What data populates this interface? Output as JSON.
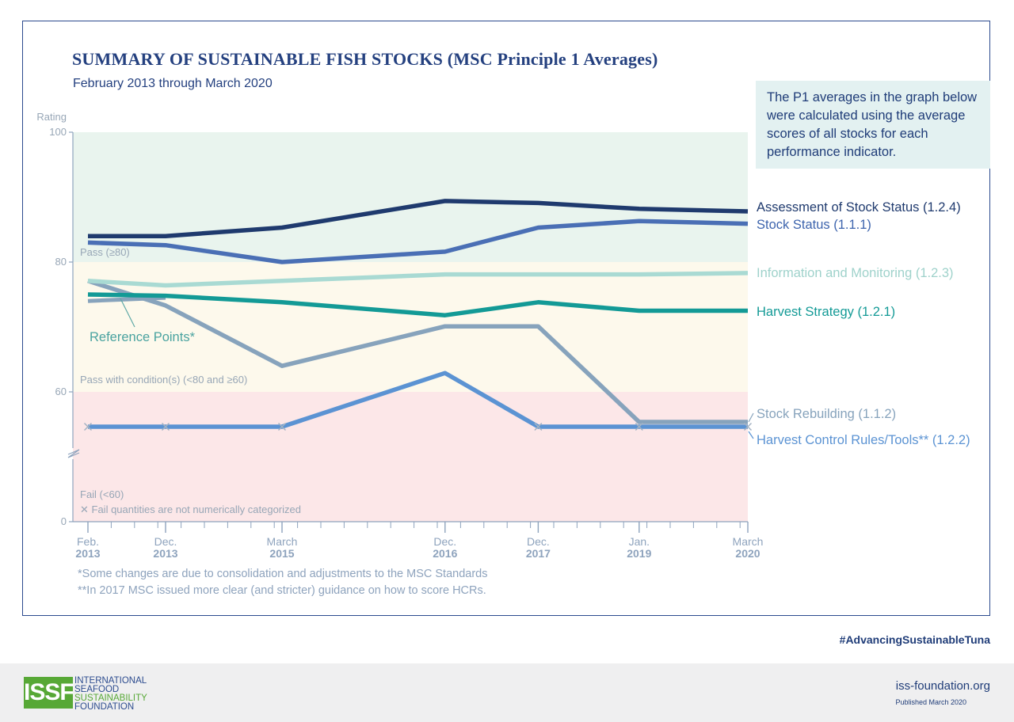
{
  "header": {
    "title": "SUMMARY OF SUSTAINABLE FISH STOCKS (MSC Principle 1 Averages)",
    "subtitle": "February 2013 through March 2020"
  },
  "note": "The P1 averages in the graph below were calculated using the average scores of all stocks for each performance indicator.",
  "footnotes": [
    "*Some changes are due to consolidation and adjustments to the MSC Standards",
    "**In 2017 MSC issued more clear (and stricter) guidance on how to score HCRs."
  ],
  "footer": {
    "hashtag": "#AdvancingSustainableTuna",
    "website": "iss-foundation.org",
    "published": "Published March 2020",
    "logo_mark": "ISSF",
    "logo_lines": [
      "INTERNATIONAL",
      "SEAFOOD",
      "SUSTAINABILITY",
      "FOUNDATION"
    ]
  },
  "colors": {
    "frame": "#2b4a8e",
    "pass_band": "#e9f4ee",
    "condition_band": "#fdf9ec",
    "fail_band": "#fce7e8",
    "axis": "#8ea3bd",
    "logo_blue": "#2d4c8f",
    "logo_green": "#57a836"
  },
  "chart_data": {
    "type": "line",
    "ylabel": "Rating",
    "y_ticks": [
      {
        "value": 100,
        "label": "100"
      },
      {
        "value": 80,
        "label": "80"
      },
      {
        "value": 60,
        "label": "60"
      },
      {
        "value": 0,
        "label": "0"
      }
    ],
    "y_axis_break": "between 0 and 60",
    "x": [
      {
        "date": "2013-02",
        "label": [
          "Feb.",
          "2013"
        ]
      },
      {
        "date": "2013-12",
        "label": [
          "Dec.",
          "2013"
        ]
      },
      {
        "date": "2015-03",
        "label": [
          "March",
          "2015"
        ]
      },
      {
        "date": "2016-12",
        "label": [
          "Dec.",
          "2016"
        ]
      },
      {
        "date": "2017-12",
        "label": [
          "Dec.",
          "2017"
        ]
      },
      {
        "date": "2019-01",
        "label": [
          "Jan.",
          "2019"
        ]
      },
      {
        "date": "2020-03",
        "label": [
          "March",
          "2020"
        ]
      }
    ],
    "bands": [
      {
        "label": "Pass (≥80)",
        "from": 80,
        "to": 100,
        "color": "#e9f4ee"
      },
      {
        "label": "Pass with condition(s) (<80 and ≥60)",
        "from": 60,
        "to": 80,
        "color": "#fdf9ec"
      },
      {
        "label": "Fail (<60)",
        "from": 0,
        "to": 60,
        "color": "#fce7e8"
      }
    ],
    "fail_note": "Fail quantities are not numerically categorized",
    "series": [
      {
        "name": "Assessment of Stock Status (1.2.4)",
        "color": "#1f3a6e",
        "points": [
          [
            "2013-02",
            84.0
          ],
          [
            "2013-12",
            84.0
          ],
          [
            "2015-03",
            85.3
          ],
          [
            "2016-12",
            89.4
          ],
          [
            "2017-12",
            89.1
          ],
          [
            "2019-01",
            88.2
          ],
          [
            "2020-03",
            87.8
          ]
        ]
      },
      {
        "name": "Stock Status (1.1.1)",
        "color": "#4a6fb5",
        "points": [
          [
            "2013-02",
            83.0
          ],
          [
            "2013-12",
            82.6
          ],
          [
            "2015-03",
            80.0
          ],
          [
            "2016-12",
            81.6
          ],
          [
            "2017-12",
            85.3
          ],
          [
            "2019-01",
            86.3
          ],
          [
            "2020-03",
            85.9
          ]
        ]
      },
      {
        "name": "Information and Monitoring (1.2.3)",
        "color": "#a9dad3",
        "points": [
          [
            "2013-02",
            77.1
          ],
          [
            "2013-12",
            76.4
          ],
          [
            "2015-03",
            77.1
          ],
          [
            "2016-12",
            78.1
          ],
          [
            "2017-12",
            78.1
          ],
          [
            "2019-01",
            78.1
          ],
          [
            "2020-03",
            78.3
          ]
        ]
      },
      {
        "name": "Harvest Strategy (1.2.1)",
        "color": "#139a96",
        "points": [
          [
            "2013-02",
            75.0
          ],
          [
            "2013-12",
            74.8
          ],
          [
            "2015-03",
            73.8
          ],
          [
            "2016-12",
            71.8
          ],
          [
            "2017-12",
            73.8
          ],
          [
            "2019-01",
            72.5
          ],
          [
            "2020-03",
            72.5
          ]
        ]
      },
      {
        "name": "Stock Rebuilding (1.1.2)",
        "color": "#87a3bc",
        "points": [
          [
            "2013-02",
            77.1
          ],
          [
            "2013-12",
            73.3
          ],
          [
            "2015-03",
            64.0
          ],
          [
            "2016-12",
            70.1
          ],
          [
            "2017-12",
            70.1
          ],
          [
            "2019-01",
            null
          ],
          [
            "2020-03",
            null
          ]
        ],
        "fail_at": [
          "2019-01",
          "2020-03"
        ]
      },
      {
        "name": "Harvest Control Rules/Tools** (1.2.2)",
        "color": "#5b93d3",
        "points": [
          [
            "2013-02",
            null
          ],
          [
            "2013-12",
            null
          ],
          [
            "2015-03",
            null
          ],
          [
            "2016-12",
            62.9
          ],
          [
            "2017-12",
            null
          ],
          [
            "2019-01",
            null
          ],
          [
            "2020-03",
            null
          ]
        ],
        "fail_at": [
          "2013-02",
          "2013-12",
          "2015-03",
          "2017-12",
          "2019-01",
          "2020-03"
        ]
      },
      {
        "name": "Reference Points*",
        "color": "#87a3bc",
        "points": [
          [
            "2013-02",
            74.0
          ],
          [
            "2013-12",
            74.5
          ]
        ]
      }
    ]
  }
}
